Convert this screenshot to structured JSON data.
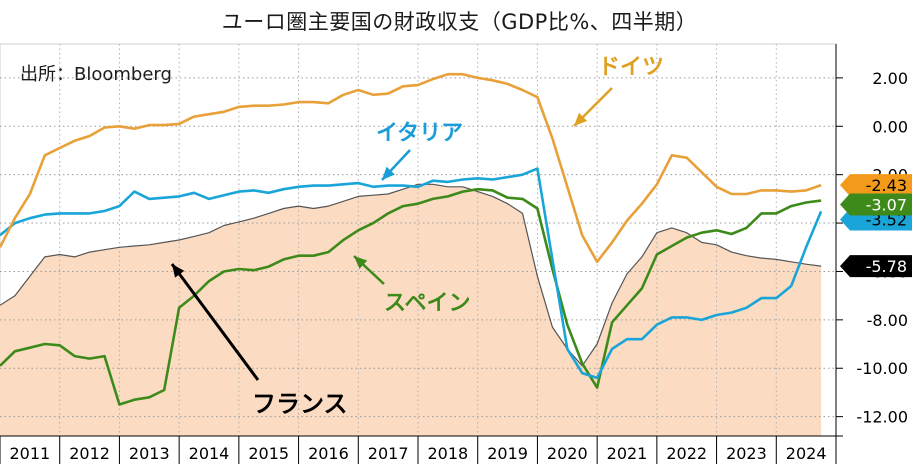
{
  "title": "ユーロ圏主要国の財政収支（GDP比%、四半期）",
  "source": "出所：Bloomberg",
  "chart_data": {
    "type": "line",
    "title": "ユーロ圏主要国の財政収支（GDP比%、四半期）",
    "xlabel": "",
    "ylabel": "",
    "ylim": [
      -12.8,
      3.4
    ],
    "xlim": [
      2011.0,
      2025.0
    ],
    "y_ticks": [
      "2.00",
      "0.00",
      "-2.00",
      "-4.00",
      "-6.00",
      "-8.00",
      "-10.00",
      "-12.00"
    ],
    "y_tick_values": [
      2,
      0,
      -2,
      -4,
      -6,
      -8,
      -10,
      -12
    ],
    "x_ticks": [
      "2011",
      "2012",
      "2013",
      "2014",
      "2015",
      "2016",
      "2017",
      "2018",
      "2019",
      "2020",
      "2021",
      "2022",
      "2023",
      "2024"
    ],
    "grid": true,
    "y_axis_side": "right",
    "series": [
      {
        "name": "フランス",
        "color": "#555555",
        "fill": "#fbdcc3",
        "label_color": "#000000",
        "x": [
          2011.0,
          2011.25,
          2011.5,
          2011.75,
          2012.0,
          2012.25,
          2012.5,
          2012.75,
          2013.0,
          2013.25,
          2013.5,
          2013.75,
          2014.0,
          2014.25,
          2014.5,
          2014.75,
          2015.0,
          2015.25,
          2015.5,
          2015.75,
          2016.0,
          2016.25,
          2016.5,
          2016.75,
          2017.0,
          2017.25,
          2017.5,
          2017.75,
          2018.0,
          2018.25,
          2018.5,
          2018.75,
          2019.0,
          2019.25,
          2019.5,
          2019.75,
          2020.0,
          2020.25,
          2020.5,
          2020.75,
          2021.0,
          2021.25,
          2021.5,
          2021.75,
          2022.0,
          2022.25,
          2022.5,
          2022.75,
          2023.0,
          2023.25,
          2023.5,
          2023.75,
          2024.0,
          2024.25,
          2024.5,
          2024.75
        ],
        "values": [
          -7.4,
          -7.0,
          -6.2,
          -5.4,
          -5.3,
          -5.4,
          -5.2,
          -5.1,
          -5.0,
          -4.95,
          -4.9,
          -4.8,
          -4.7,
          -4.55,
          -4.4,
          -4.1,
          -3.95,
          -3.8,
          -3.6,
          -3.4,
          -3.3,
          -3.4,
          -3.3,
          -3.1,
          -2.9,
          -2.85,
          -2.8,
          -2.6,
          -2.4,
          -2.4,
          -2.5,
          -2.5,
          -2.7,
          -2.9,
          -3.2,
          -3.6,
          -6.2,
          -8.3,
          -9.2,
          -9.9,
          -9.0,
          -7.3,
          -6.1,
          -5.4,
          -4.4,
          -4.2,
          -4.4,
          -4.8,
          -4.9,
          -5.2,
          -5.35,
          -5.45,
          -5.5,
          -5.6,
          -5.7,
          -5.78
        ]
      },
      {
        "name": "ドイツ",
        "color": "#e8a038",
        "label_color": "#e0a020",
        "x": [
          2011.0,
          2011.25,
          2011.5,
          2011.75,
          2012.0,
          2012.25,
          2012.5,
          2012.75,
          2013.0,
          2013.25,
          2013.5,
          2013.75,
          2014.0,
          2014.25,
          2014.5,
          2014.75,
          2015.0,
          2015.25,
          2015.5,
          2015.75,
          2016.0,
          2016.25,
          2016.5,
          2016.75,
          2017.0,
          2017.25,
          2017.5,
          2017.75,
          2018.0,
          2018.25,
          2018.5,
          2018.75,
          2019.0,
          2019.25,
          2019.5,
          2019.75,
          2020.0,
          2020.25,
          2020.5,
          2020.75,
          2021.0,
          2021.25,
          2021.5,
          2021.75,
          2022.0,
          2022.25,
          2022.5,
          2022.75,
          2023.0,
          2023.25,
          2023.5,
          2023.75,
          2024.0,
          2024.25,
          2024.5,
          2024.75
        ],
        "values": [
          -5.0,
          -3.8,
          -2.8,
          -1.2,
          -0.9,
          -0.6,
          -0.4,
          -0.05,
          0.0,
          -0.1,
          0.05,
          0.05,
          0.1,
          0.4,
          0.5,
          0.6,
          0.8,
          0.85,
          0.85,
          0.9,
          1.0,
          1.0,
          0.95,
          1.3,
          1.5,
          1.3,
          1.35,
          1.65,
          1.7,
          1.95,
          2.15,
          2.15,
          2.0,
          1.9,
          1.75,
          1.5,
          1.2,
          -0.5,
          -2.5,
          -4.5,
          -5.6,
          -4.8,
          -3.9,
          -3.2,
          -2.4,
          -1.2,
          -1.3,
          -1.9,
          -2.5,
          -2.8,
          -2.8,
          -2.65,
          -2.65,
          -2.7,
          -2.65,
          -2.43
        ]
      },
      {
        "name": "イタリア",
        "color": "#1aa5d8",
        "label_color": "#1a9cd8",
        "x": [
          2011.0,
          2011.25,
          2011.5,
          2011.75,
          2012.0,
          2012.25,
          2012.5,
          2012.75,
          2013.0,
          2013.25,
          2013.5,
          2013.75,
          2014.0,
          2014.25,
          2014.5,
          2014.75,
          2015.0,
          2015.25,
          2015.5,
          2015.75,
          2016.0,
          2016.25,
          2016.5,
          2016.75,
          2017.0,
          2017.25,
          2017.5,
          2017.75,
          2018.0,
          2018.25,
          2018.5,
          2018.75,
          2019.0,
          2019.25,
          2019.5,
          2019.75,
          2020.0,
          2020.25,
          2020.5,
          2020.75,
          2021.0,
          2021.25,
          2021.5,
          2021.75,
          2022.0,
          2022.25,
          2022.5,
          2022.75,
          2023.0,
          2023.25,
          2023.5,
          2023.75,
          2024.0,
          2024.25,
          2024.5,
          2024.75
        ],
        "values": [
          -4.5,
          -4.0,
          -3.8,
          -3.65,
          -3.6,
          -3.6,
          -3.6,
          -3.5,
          -3.3,
          -2.7,
          -3.0,
          -2.95,
          -2.9,
          -2.75,
          -3.0,
          -2.85,
          -2.7,
          -2.65,
          -2.75,
          -2.6,
          -2.5,
          -2.45,
          -2.45,
          -2.4,
          -2.35,
          -2.5,
          -2.45,
          -2.45,
          -2.5,
          -2.25,
          -2.3,
          -2.2,
          -2.15,
          -2.2,
          -2.1,
          -2.0,
          -1.75,
          -5.5,
          -9.2,
          -10.2,
          -10.4,
          -9.2,
          -8.8,
          -8.8,
          -8.2,
          -7.9,
          -7.9,
          -8.0,
          -7.8,
          -7.7,
          -7.5,
          -7.1,
          -7.1,
          -6.6,
          -5.0,
          -3.52
        ]
      },
      {
        "name": "スペイン",
        "color": "#3d8a1a",
        "label_color": "#3d8a1a",
        "x": [
          2011.0,
          2011.25,
          2011.5,
          2011.75,
          2012.0,
          2012.25,
          2012.5,
          2012.75,
          2013.0,
          2013.25,
          2013.5,
          2013.75,
          2014.0,
          2014.25,
          2014.5,
          2014.75,
          2015.0,
          2015.25,
          2015.5,
          2015.75,
          2016.0,
          2016.25,
          2016.5,
          2016.75,
          2017.0,
          2017.25,
          2017.5,
          2017.75,
          2018.0,
          2018.25,
          2018.5,
          2018.75,
          2019.0,
          2019.25,
          2019.5,
          2019.75,
          2020.0,
          2020.25,
          2020.5,
          2020.75,
          2021.0,
          2021.25,
          2021.5,
          2021.75,
          2022.0,
          2022.25,
          2022.5,
          2022.75,
          2023.0,
          2023.25,
          2023.5,
          2023.75,
          2024.0,
          2024.25,
          2024.5,
          2024.75
        ],
        "values": [
          -9.9,
          -9.3,
          -9.15,
          -9.0,
          -9.05,
          -9.5,
          -9.6,
          -9.5,
          -11.5,
          -11.3,
          -11.2,
          -10.9,
          -7.5,
          -7.0,
          -6.4,
          -6.0,
          -5.9,
          -5.95,
          -5.8,
          -5.5,
          -5.35,
          -5.35,
          -5.2,
          -4.7,
          -4.3,
          -4.0,
          -3.6,
          -3.3,
          -3.2,
          -3.0,
          -2.9,
          -2.7,
          -2.6,
          -2.65,
          -2.95,
          -3.0,
          -3.4,
          -5.9,
          -8.2,
          -9.8,
          -10.8,
          -8.1,
          -7.4,
          -6.7,
          -5.3,
          -4.95,
          -4.6,
          -4.4,
          -4.3,
          -4.45,
          -4.2,
          -3.6,
          -3.6,
          -3.3,
          -3.15,
          -3.07
        ]
      }
    ],
    "end_labels": [
      {
        "series": "ドイツ",
        "text": "-2.43",
        "bg": "#f39a1a",
        "color": "#000000"
      },
      {
        "series": "スペイン",
        "text": "-3.07",
        "bg": "#3d8a1a",
        "color": "#ffffff"
      },
      {
        "series": "イタリア",
        "text": "-3.52",
        "bg": "#1aa5d8",
        "color": "#000000"
      },
      {
        "series": "フランス",
        "text": "-5.78",
        "bg": "#000000",
        "color": "#ffffff"
      }
    ],
    "annotations": [
      {
        "text": "ドイツ",
        "color": "#e0a020"
      },
      {
        "text": "イタリア",
        "color": "#1a9cd8"
      },
      {
        "text": "スペイン",
        "color": "#3d8a1a"
      },
      {
        "text": "フランス",
        "color": "#000000"
      }
    ]
  }
}
